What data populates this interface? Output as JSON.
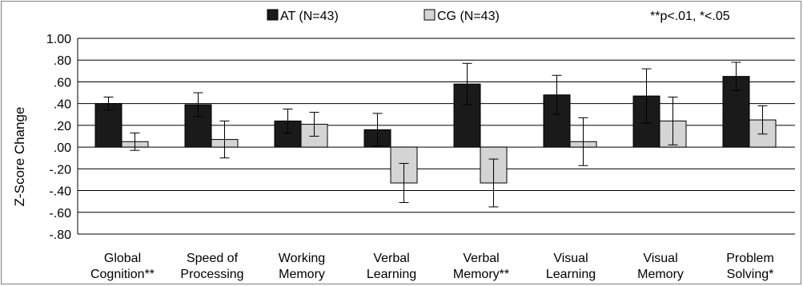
{
  "chart_data": {
    "type": "bar",
    "ylabel": "Z-Score Change",
    "ylim": [
      -0.8,
      1.0
    ],
    "yticks": [
      "1.00",
      ".80",
      ".60",
      ".40",
      ".20",
      ".00",
      "-.20",
      "-.40",
      "-.60",
      "-.80"
    ],
    "ytick_values": [
      1.0,
      0.8,
      0.6,
      0.4,
      0.2,
      0.0,
      -0.2,
      -0.4,
      -0.6,
      -0.8
    ],
    "grid": true,
    "legend_position": "top",
    "significance_note": "**p<.01, *<.05",
    "categories": [
      [
        "Global",
        "Cognition**"
      ],
      [
        "Speed of",
        "Processing"
      ],
      [
        "Working",
        "Memory"
      ],
      [
        "Verbal",
        "Learning"
      ],
      [
        "Verbal",
        "Memory**"
      ],
      [
        "Visual",
        "Learning"
      ],
      [
        "Visual",
        "Memory"
      ],
      [
        "Problem",
        "Solving*"
      ]
    ],
    "series": [
      {
        "name": "AT (N=43)",
        "color": "#1a1a1a",
        "values": [
          0.4,
          0.39,
          0.24,
          0.16,
          0.58,
          0.48,
          0.47,
          0.65
        ],
        "error": [
          0.06,
          0.11,
          0.11,
          0.15,
          0.19,
          0.18,
          0.25,
          0.13
        ]
      },
      {
        "name": "CG (N=43)",
        "color": "#d4d4d4",
        "values": [
          0.05,
          0.07,
          0.21,
          -0.33,
          -0.33,
          0.05,
          0.24,
          0.25
        ],
        "error": [
          0.08,
          0.17,
          0.11,
          0.18,
          0.22,
          0.22,
          0.22,
          0.13
        ]
      }
    ]
  }
}
